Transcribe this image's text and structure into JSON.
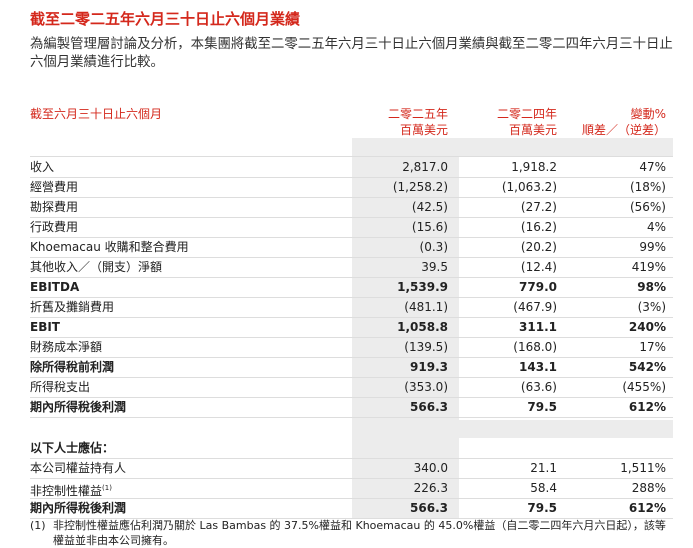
{
  "header": {
    "title": "截至二零二五年六月三十日止六個月業績",
    "intro": "為編製管理層討論及分析，本集團將截至二零二五年六月三十日止六個月業績與截至二零二四年六月三十日止六個月業績進行比較。"
  },
  "table": {
    "columns": [
      {
        "line1": "截至六月三十日止六個月"
      },
      {
        "line1": "二零二五年",
        "line2": "百萬美元"
      },
      {
        "line1": "二零二四年",
        "line2": "百萬美元"
      },
      {
        "line1": "變動%",
        "line2": "順差／（逆差）"
      }
    ],
    "rows": [
      {
        "cells": [
          "收入",
          "2,817.0",
          "1,918.2",
          "47%"
        ],
        "bold": false
      },
      {
        "cells": [
          "經營費用",
          "(1,258.2)",
          "(1,063.2)",
          "(18%)"
        ],
        "bold": false
      },
      {
        "cells": [
          "勘探費用",
          "(42.5)",
          "(27.2)",
          "(56%)"
        ],
        "bold": false
      },
      {
        "cells": [
          "行政費用",
          "(15.6)",
          "(16.2)",
          "4%"
        ],
        "bold": false
      },
      {
        "cells": [
          "Khoemacau 收購和整合費用",
          "(0.3)",
          "(20.2)",
          "99%"
        ],
        "bold": false
      },
      {
        "cells": [
          "其他收入／（開支）淨額",
          "39.5",
          "(12.4)",
          "419%"
        ],
        "bold": false
      },
      {
        "cells": [
          "EBITDA",
          "1,539.9",
          "779.0",
          "98%"
        ],
        "bold": true
      },
      {
        "cells": [
          "折舊及攤銷費用",
          "(481.1)",
          "(467.9)",
          "(3%)"
        ],
        "bold": false
      },
      {
        "cells": [
          "EBIT",
          "1,058.8",
          "311.1",
          "240%"
        ],
        "bold": true
      },
      {
        "cells": [
          "財務成本淨額",
          "(139.5)",
          "(168.0)",
          "17%"
        ],
        "bold": false
      },
      {
        "cells": [
          "除所得稅前利潤",
          "919.3",
          "143.1",
          "542%"
        ],
        "bold": true
      },
      {
        "cells": [
          "所得稅支出",
          "(353.0)",
          "(63.6)",
          "(455%)"
        ],
        "bold": false
      },
      {
        "cells": [
          "期內所得稅後利潤",
          "566.3",
          "79.5",
          "612%"
        ],
        "bold": true
      }
    ],
    "section_label": "以下人士應佔：",
    "section_rows": [
      {
        "cells": [
          "本公司權益持有人",
          "340.0",
          "21.1",
          "1,511%"
        ],
        "bold": false
      },
      {
        "cells": [
          "非控制性權益",
          "226.3",
          "58.4",
          "288%"
        ],
        "bold": false,
        "note_ref": "(1)"
      },
      {
        "cells": [
          "期內所得稅後利潤",
          "566.3",
          "79.5",
          "612%"
        ],
        "bold": true
      }
    ]
  },
  "footnote": {
    "marker": "(1)",
    "text": "非控制性權益應佔利潤乃關於 Las Bambas 的 37.5%權益和 Khoemacau 的 45.0%權益（自二零二四年六月六日起），該等權益並非由本公司擁有。"
  }
}
